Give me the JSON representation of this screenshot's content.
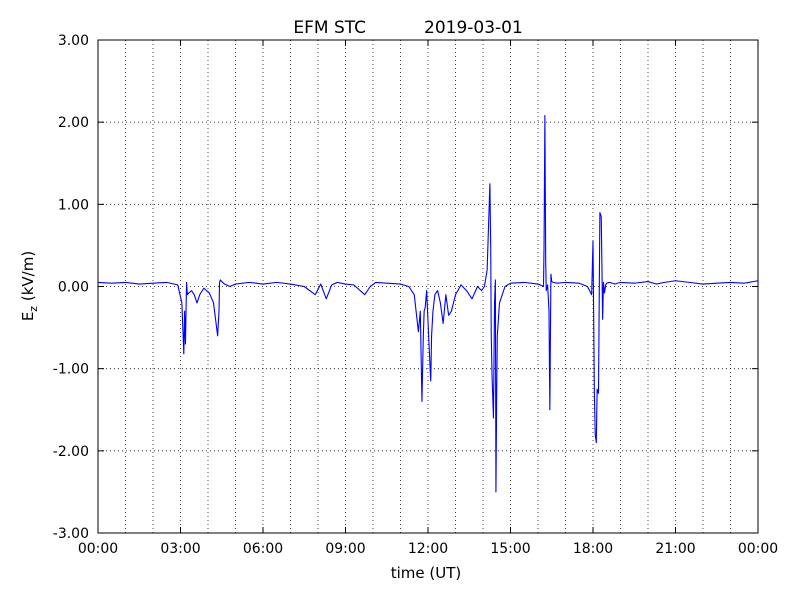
{
  "chart_data": {
    "type": "line",
    "title": "EFM STC",
    "date": "2019-03-01",
    "xlabel": "time (UT)",
    "ylabel_main": "E",
    "ylabel_sub": "z",
    "ylabel_unit": " (kV/m)",
    "xlim": [
      0,
      24
    ],
    "ylim": [
      -3,
      3
    ],
    "x_ticks": [
      {
        "value": 0,
        "label": "00:00"
      },
      {
        "value": 3,
        "label": "03:00"
      },
      {
        "value": 6,
        "label": "06:00"
      },
      {
        "value": 9,
        "label": "09:00"
      },
      {
        "value": 12,
        "label": "12:00"
      },
      {
        "value": 15,
        "label": "15:00"
      },
      {
        "value": 18,
        "label": "18:00"
      },
      {
        "value": 21,
        "label": "21:00"
      },
      {
        "value": 24,
        "label": "00:00"
      }
    ],
    "y_ticks": [
      {
        "value": 3,
        "label": "3.00"
      },
      {
        "value": 2,
        "label": "2.00"
      },
      {
        "value": 1,
        "label": "1.00"
      },
      {
        "value": 0,
        "label": "0.00"
      },
      {
        "value": -1,
        "label": "-1.00"
      },
      {
        "value": -2,
        "label": "-2.00"
      },
      {
        "value": -3,
        "label": "-3.00"
      }
    ],
    "minor_x_grid": [
      1,
      2,
      4,
      5,
      7,
      8,
      10,
      11,
      13,
      14,
      16,
      17,
      19,
      20,
      22,
      23
    ],
    "grid": true,
    "line_color": "#0000ff",
    "series": [
      {
        "x": [
          0,
          0.5,
          1,
          1.5,
          2,
          2.5,
          2.9,
          3.05,
          3.12,
          3.15,
          3.18,
          3.22,
          3.25,
          3.3,
          3.4,
          3.5,
          3.6,
          3.7,
          3.85,
          3.95,
          4.05,
          4.2,
          4.35,
          4.4,
          4.42,
          4.45,
          4.5,
          4.6,
          4.8,
          5.0,
          5.5,
          6,
          6.5,
          7,
          7.5,
          7.9,
          8.1,
          8.3,
          8.5,
          8.7,
          9,
          9.3,
          9.7,
          9.9,
          10.1,
          10.5,
          11,
          11.3,
          11.5,
          11.65,
          11.72,
          11.78,
          11.83,
          11.86,
          11.9,
          11.95,
          12.05,
          12.1,
          12.13,
          12.18,
          12.25,
          12.35,
          12.45,
          12.55,
          12.65,
          12.75,
          12.85,
          13.0,
          13.2,
          13.4,
          13.6,
          13.8,
          13.95,
          14.05,
          14.15,
          14.25,
          14.28,
          14.3,
          14.33,
          14.38,
          14.42,
          14.45,
          14.47,
          14.5,
          14.52,
          14.6,
          14.8,
          15.0,
          15.5,
          16.0,
          16.2,
          16.22,
          16.25,
          16.28,
          16.3,
          16.35,
          16.4,
          16.43,
          16.47,
          16.5,
          16.55,
          16.7,
          17.0,
          17.5,
          17.8,
          17.95,
          18.0,
          18.05,
          18.08,
          18.12,
          18.15,
          18.2,
          18.25,
          18.3,
          18.35,
          18.38,
          18.42,
          18.46,
          18.5,
          18.6,
          18.8,
          19.0,
          19.5,
          20.0,
          20.3,
          20.6,
          21.0,
          21.5,
          22.0,
          22.5,
          23.0,
          23.5,
          24.0
        ],
        "y": [
          0.05,
          0.04,
          0.05,
          0.03,
          0.04,
          0.05,
          0.02,
          -0.2,
          -0.82,
          -0.3,
          -0.7,
          0.05,
          -0.1,
          -0.08,
          -0.05,
          -0.1,
          -0.2,
          -0.1,
          -0.02,
          -0.05,
          -0.08,
          -0.2,
          -0.6,
          -0.3,
          0.05,
          0.08,
          0.06,
          0.03,
          0.0,
          0.03,
          0.05,
          0.03,
          0.05,
          0.03,
          0.0,
          -0.1,
          0.03,
          -0.15,
          0.02,
          0.05,
          0.03,
          0.02,
          -0.1,
          0.0,
          0.05,
          0.04,
          0.03,
          0.0,
          -0.1,
          -0.55,
          -0.3,
          -1.4,
          -0.6,
          -0.3,
          -0.25,
          -0.05,
          -0.8,
          -1.15,
          -0.6,
          -0.3,
          -0.1,
          -0.05,
          -0.2,
          -0.45,
          -0.1,
          -0.35,
          -0.3,
          -0.1,
          0.02,
          -0.05,
          -0.15,
          0.0,
          -0.05,
          0.0,
          0.2,
          1.25,
          0.5,
          -0.6,
          -1.1,
          -1.6,
          -0.2,
          0.08,
          -2.5,
          -1.2,
          -0.6,
          -0.2,
          0.0,
          0.04,
          0.05,
          0.03,
          0.0,
          0.5,
          2.08,
          0.3,
          -0.05,
          0.02,
          -0.3,
          -1.5,
          0.15,
          0.06,
          0.05,
          0.04,
          0.05,
          0.04,
          0.0,
          -0.1,
          0.55,
          -1.3,
          -1.8,
          -1.9,
          -1.25,
          -1.3,
          0.9,
          0.85,
          -0.4,
          0.05,
          -0.08,
          0.02,
          0.04,
          0.05,
          0.03,
          0.05,
          0.04,
          0.06,
          0.03,
          0.05,
          0.07,
          0.05,
          0.03,
          0.04,
          0.05,
          0.04,
          0.07
        ]
      }
    ]
  }
}
